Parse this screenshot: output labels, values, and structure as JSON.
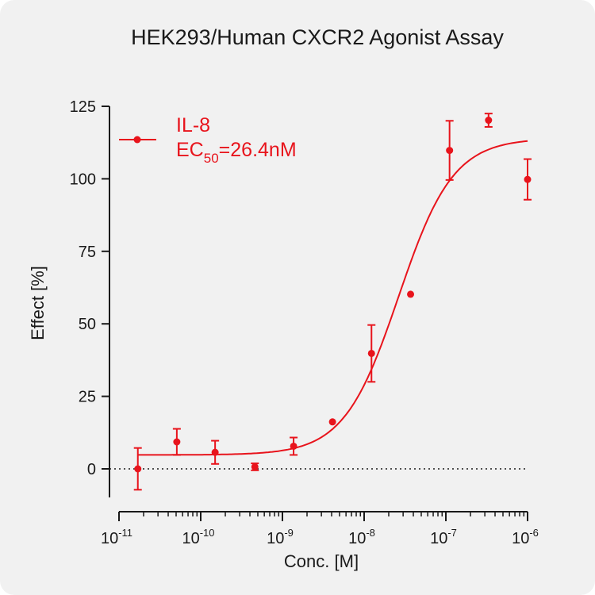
{
  "chart_data": {
    "type": "scatter",
    "title": "HEK293/Human CXCR2  Agonist Assay",
    "xlabel": "Conc. [M]",
    "ylabel": "Effect  [%]",
    "x_scale": "log",
    "xlim": [
      1e-11,
      1e-06
    ],
    "ylim": [
      -10,
      125
    ],
    "y_ticks": [
      0,
      25,
      50,
      75,
      100,
      125
    ],
    "y_tick_labels": [
      "0",
      "25",
      "50",
      "75",
      "100",
      "125"
    ],
    "x_ticks": [
      {
        "base": "10",
        "exp": "-11"
      },
      {
        "base": "10",
        "exp": "-10"
      },
      {
        "base": "10",
        "exp": "-9"
      },
      {
        "base": "10",
        "exp": "-8"
      },
      {
        "base": "10",
        "exp": "-7"
      },
      {
        "base": "10",
        "exp": "-6"
      }
    ],
    "zero_line": true,
    "color": "#e8141c",
    "series": [
      {
        "name": "IL-8",
        "ec50_prefix": "EC",
        "ec50_sub": "50",
        "ec50_value": "=26.4nM",
        "points": [
          {
            "x": 1.7e-11,
            "y": 0,
            "err": 7.2
          },
          {
            "x": 5.1e-11,
            "y": 9.3,
            "err": 4.5
          },
          {
            "x": 1.5e-10,
            "y": 5.7,
            "err": 4.0
          },
          {
            "x": 4.6e-10,
            "y": 0.7,
            "err": 1.2
          },
          {
            "x": 1.37e-09,
            "y": 7.8,
            "err": 3.0
          },
          {
            "x": 4.1e-09,
            "y": 16.2,
            "err": 0
          },
          {
            "x": 1.23e-08,
            "y": 39.8,
            "err": 9.8
          },
          {
            "x": 3.7e-08,
            "y": 60.2,
            "err": 0
          },
          {
            "x": 1.11e-07,
            "y": 109.8,
            "err": 10.2
          },
          {
            "x": 3.33e-07,
            "y": 120.2,
            "err": 2.3
          },
          {
            "x": 1e-06,
            "y": 99.8,
            "err": 7.0
          }
        ],
        "fit": {
          "bottom": 4.8,
          "top": 114,
          "ec50": 2.64e-08,
          "hill": 1.3
        }
      }
    ]
  }
}
